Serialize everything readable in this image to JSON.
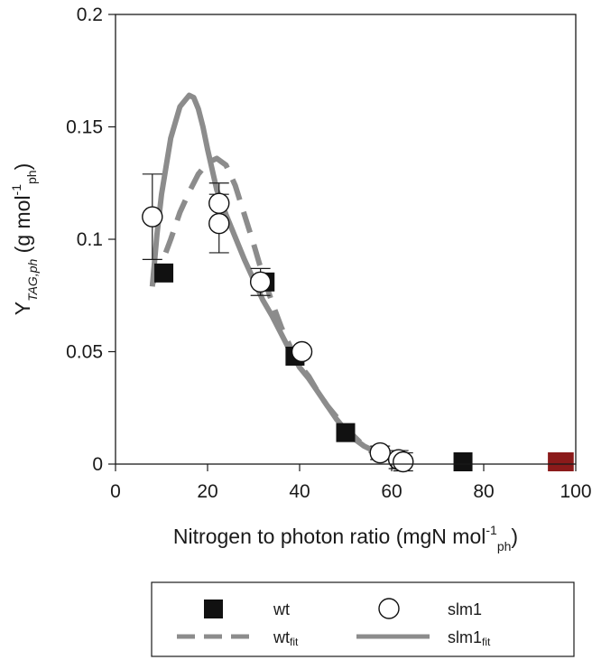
{
  "chart_data": {
    "type": "scatter",
    "xlabel": "Nitrogen to photon ratio (mgN mol",
    "xlabel_sup": "-1",
    "xlabel_sub": "ph",
    "xlabel_close": ")",
    "ylabel_main": "Y",
    "ylabel_sub": "TAG,ph",
    "ylabel_rest": " (g mol",
    "ylabel_sup": "-1",
    "ylabel_sub2": "ph",
    "ylabel_close": ")",
    "xlim": [
      0,
      100
    ],
    "ylim": [
      0,
      0.2
    ],
    "x_ticks": [
      0,
      20,
      40,
      60,
      80,
      100
    ],
    "x_tick_labels": [
      "0",
      "20",
      "40",
      "60",
      "80",
      "100"
    ],
    "y_ticks": [
      0,
      0.05,
      0.1,
      0.15,
      0.2
    ],
    "y_tick_labels": [
      "0",
      "0.05",
      "0.1",
      "0.15",
      "0.2"
    ],
    "grid": false,
    "legend_position": "bottom",
    "series": [
      {
        "name": "wt",
        "kind": "points",
        "marker": "filled-square",
        "color": "#111111",
        "points": [
          {
            "x": 10.5,
            "y": 0.085
          },
          {
            "x": 32.5,
            "y": 0.081
          },
          {
            "x": 39,
            "y": 0.048
          },
          {
            "x": 50,
            "y": 0.014
          },
          {
            "x": 75.5,
            "y": 0.001
          },
          {
            "x": 96,
            "y": 0.001,
            "color": "#8b1a1a"
          },
          {
            "x": 97.5,
            "y": 0.001,
            "color": "#8b1a1a"
          }
        ]
      },
      {
        "name": "slm1",
        "kind": "points",
        "marker": "open-circle",
        "color": "#111111",
        "points": [
          {
            "x": 8,
            "y": 0.11,
            "err": 0.019
          },
          {
            "x": 22.5,
            "y": 0.116,
            "err": 0.009
          },
          {
            "x": 22.5,
            "y": 0.107,
            "err": 0.013
          },
          {
            "x": 31.5,
            "y": 0.081,
            "err": 0.006
          },
          {
            "x": 40.5,
            "y": 0.05,
            "err": 0.0
          },
          {
            "x": 57.5,
            "y": 0.005,
            "err": 0.003
          },
          {
            "x": 61.5,
            "y": 0.002,
            "err": 0.004
          },
          {
            "x": 62.5,
            "y": 0.001,
            "err": 0.004
          }
        ]
      },
      {
        "name": "wt",
        "name_sub": "fit",
        "kind": "line",
        "style": "dashed",
        "color": "#8c8c8c",
        "x": [
          8,
          10,
          12,
          14,
          16,
          18,
          20,
          22,
          24,
          26,
          28,
          30,
          32,
          34,
          36,
          38,
          40,
          42,
          44,
          46,
          48,
          50,
          52,
          54,
          56,
          57
        ],
        "y": [
          0.08,
          0.089,
          0.1,
          0.112,
          0.121,
          0.129,
          0.134,
          0.136,
          0.133,
          0.124,
          0.111,
          0.098,
          0.084,
          0.072,
          0.061,
          0.052,
          0.044,
          0.039,
          0.032,
          0.026,
          0.021,
          0.016,
          0.012,
          0.008,
          0.005,
          0.004
        ]
      },
      {
        "name": "slm1",
        "name_sub": "fit",
        "kind": "line",
        "style": "solid",
        "color": "#8c8c8c",
        "x": [
          8,
          9,
          10,
          12,
          14,
          16,
          17,
          18,
          19,
          20,
          22,
          24,
          26,
          28,
          30,
          32,
          34,
          36,
          38,
          40,
          42,
          44,
          46,
          48,
          50,
          52,
          54,
          56,
          57
        ],
        "y": [
          0.079,
          0.102,
          0.12,
          0.145,
          0.159,
          0.164,
          0.163,
          0.158,
          0.15,
          0.14,
          0.122,
          0.111,
          0.101,
          0.091,
          0.082,
          0.073,
          0.066,
          0.058,
          0.05,
          0.043,
          0.038,
          0.032,
          0.026,
          0.02,
          0.015,
          0.011,
          0.008,
          0.006,
          0.005
        ]
      }
    ]
  }
}
